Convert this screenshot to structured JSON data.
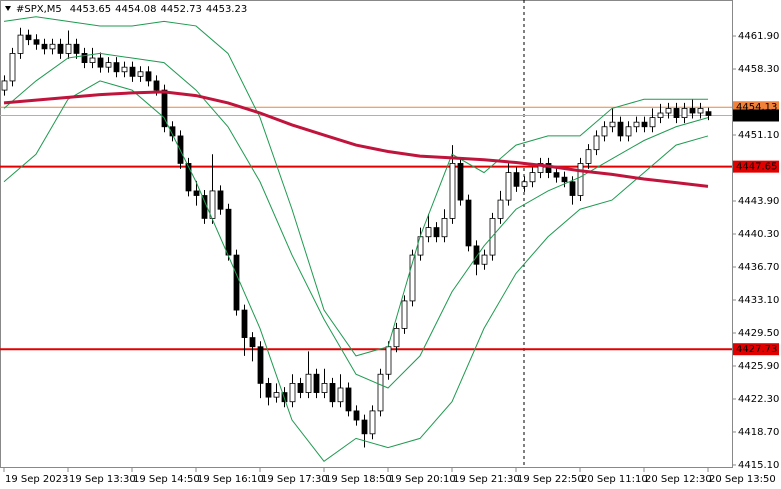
{
  "chart_data": {
    "type": "candlestick",
    "title": "#SPX,M5",
    "categories": [
      "19 Sep 2023",
      null,
      null,
      null,
      null,
      null,
      null,
      null,
      "19 Sep 13:30",
      null,
      null,
      null,
      null,
      null,
      null,
      null,
      "19 Sep 14:50",
      null,
      null,
      null,
      null,
      null,
      null,
      null,
      "19 Sep 16:10",
      null,
      null,
      null,
      null,
      null,
      null,
      null,
      "19 Sep 17:30",
      null,
      null,
      null,
      null,
      null,
      null,
      null,
      "19 Sep 18:50",
      null,
      null,
      null,
      null,
      null,
      null,
      null,
      "19 Sep 20:10",
      null,
      null,
      null,
      null,
      null,
      null,
      null,
      "19 Sep 21:30",
      null,
      null,
      null,
      null,
      null,
      null,
      null,
      "19 Sep 22:50",
      null,
      null,
      null,
      null,
      null,
      null,
      null,
      "20 Sep 11:10",
      null,
      null,
      null,
      null,
      null,
      null,
      null,
      "20 Sep 12:30",
      null,
      null,
      null,
      null,
      null,
      null,
      null,
      "20 Sep 13:50"
    ],
    "open": [
      4456,
      4457,
      4460,
      4462,
      4461.5,
      4461,
      4460.5,
      4461,
      4460,
      4461,
      4460,
      4459,
      4459.5,
      4458.5,
      4459,
      4458,
      4458.5,
      4457.5,
      4458,
      4457,
      4456,
      4452,
      4451,
      4448,
      4445,
      4444.5,
      4442,
      4445,
      4443,
      4438,
      4432,
      4429,
      4428,
      4424,
      4422.5,
      4423,
      4422,
      4424,
      4423,
      4425,
      4423,
      4424,
      4422,
      4423.5,
      4421,
      4420,
      4418.5,
      4421,
      4425,
      4428,
      4430,
      4433,
      4438,
      4440,
      4441,
      4440,
      4442,
      4448,
      4444,
      4439,
      4437,
      4438,
      4442,
      4444,
      4447,
      4445.5,
      4446,
      4447,
      4448,
      4447,
      4446.5,
      4446,
      4444.5,
      4448,
      4449.5,
      4451,
      4452,
      4452.5,
      4451,
      4452,
      4452.5,
      4452,
      4453,
      4453.5,
      4454,
      4453,
      4454,
      4453.5,
      4453.65
    ],
    "high": [
      4457.6,
      4460.6,
      4462.8,
      4462.6,
      4462.1,
      4461.6,
      4461.6,
      4461.6,
      4462.5,
      4461.6,
      4460.6,
      4460.6,
      4460.1,
      4459.6,
      4459.6,
      4459.1,
      4459.1,
      4458.6,
      4458.6,
      4457.6,
      4456.6,
      4452.6,
      4451.6,
      4448.6,
      4446.1,
      4445.1,
      4449,
      4445.6,
      4443.6,
      4438.6,
      4432.6,
      4429.6,
      4428.6,
      4424.6,
      4424,
      4423.6,
      4425,
      4424.6,
      4427.5,
      4425.6,
      4425.6,
      4424.6,
      4425,
      4424.1,
      4421.6,
      4420.6,
      4421.6,
      4425.6,
      4428.6,
      4430.6,
      4433.6,
      4438.6,
      4441,
      4442.5,
      4441.6,
      4443,
      4450,
      4448.6,
      4444.6,
      4439.6,
      4438.6,
      4442.6,
      4445,
      4448,
      4447.6,
      4446.6,
      4447.6,
      4448.6,
      4448.6,
      4447.6,
      4447.1,
      4446.6,
      4448.6,
      4450.1,
      4451.6,
      4452.6,
      4454,
      4453.1,
      4452.6,
      4453.1,
      4453.1,
      4454,
      4454.5,
      4454.6,
      4454.6,
      4454.6,
      4455,
      4454.6,
      4454.08
    ],
    "low": [
      4455.4,
      4456.4,
      4459.4,
      4460.9,
      4460.4,
      4459.9,
      4459.9,
      4459.4,
      4459.4,
      4459.4,
      4458.4,
      4458.4,
      4457.9,
      4457.9,
      4457.4,
      4457.4,
      4456.9,
      4456.9,
      4456.4,
      4455.4,
      4451.4,
      4450.4,
      4447.4,
      4444.4,
      4443.4,
      4441.4,
      4441.4,
      4442.4,
      4437.4,
      4431.4,
      4427,
      4426.4,
      4422.4,
      4421.6,
      4421.9,
      4421.4,
      4421.4,
      4422.4,
      4422.4,
      4422.4,
      4422.4,
      4421.4,
      4421.4,
      4420.4,
      4419.4,
      4417,
      4417.9,
      4420.4,
      4424.4,
      4427.4,
      4429.4,
      4432.4,
      4437.4,
      4439.4,
      4439.4,
      4439.4,
      4441.4,
      4443.4,
      4438.4,
      4435.8,
      4436.4,
      4437.4,
      4441.4,
      4443.4,
      4444.9,
      4444.9,
      4445.4,
      4446.4,
      4446.4,
      4445.9,
      4445.4,
      4443.5,
      4443.9,
      4447.4,
      4448.9,
      4450.4,
      4451.4,
      4450.4,
      4450.4,
      4451.4,
      4451.4,
      4451.4,
      4452.4,
      4452.9,
      4452.4,
      4452.4,
      4452.9,
      4452.9,
      4452.73
    ],
    "close": [
      4457,
      4460,
      4462,
      4461.5,
      4461,
      4460.5,
      4461,
      4460,
      4461,
      4460,
      4459,
      4459.5,
      4458.5,
      4459,
      4458,
      4458.5,
      4457.5,
      4458,
      4457,
      4456,
      4452,
      4451,
      4448,
      4445,
      4444.5,
      4442,
      4445,
      4443,
      4438,
      4432,
      4429,
      4428,
      4424,
      4422.5,
      4423,
      4422,
      4424,
      4423,
      4425,
      4423,
      4424,
      4422,
      4423.5,
      4421,
      4420,
      4418.5,
      4421,
      4425,
      4428,
      4430,
      4433,
      4438,
      4440,
      4441,
      4440,
      4442,
      4448,
      4444,
      4439,
      4437,
      4438,
      4442,
      4444,
      4447,
      4445.5,
      4446,
      4447,
      4448,
      4447,
      4446.5,
      4446,
      4444.5,
      4448,
      4449.5,
      4451,
      4452,
      4452.5,
      4451,
      4452,
      4452.5,
      4452,
      4453,
      4453.5,
      4454,
      4453,
      4454,
      4453.5,
      4454,
      4453.23
    ],
    "up_color": "#ffffff",
    "down_color": "#000000",
    "candle_outline": "#000000",
    "indicators": [
      {
        "color": "#1e9a50",
        "width": 1,
        "x": [
          0,
          4,
          8,
          12,
          16,
          20,
          24,
          28,
          32,
          36,
          40,
          44,
          48,
          52,
          56,
          60,
          64,
          68,
          72,
          76,
          80,
          84,
          88
        ],
        "values": [
          4463.5,
          4464,
          4463.5,
          4463,
          4463,
          4463.5,
          4463,
          4460,
          4453,
          4443,
          4432,
          4427,
          4428,
          4440,
          4449,
          4447,
          4450,
          4451,
          4451,
          4454,
          4455,
          4455,
          4455
        ]
      },
      {
        "color": "#1e9a50",
        "width": 1,
        "x": [
          0,
          4,
          8,
          12,
          16,
          20,
          24,
          28,
          32,
          36,
          40,
          44,
          48,
          52,
          56,
          60,
          64,
          68,
          72,
          76,
          80,
          84,
          88
        ],
        "values": [
          4454,
          4457,
          4459.5,
          4460,
          4459.5,
          4459,
          4456,
          4452,
          4446,
          4438,
          4431,
          4425,
          4423.5,
          4427,
          4434,
          4439,
          4443,
          4445,
          4446.5,
          4448.5,
          4450.5,
          4452,
          4453
        ]
      },
      {
        "color": "#1e9a50",
        "width": 1,
        "x": [
          0,
          4,
          8,
          12,
          16,
          20,
          24,
          28,
          32,
          36,
          40,
          44,
          48,
          52,
          56,
          60,
          64,
          68,
          72,
          76,
          80,
          84,
          88
        ],
        "values": [
          4446,
          4449,
          4455,
          4457,
          4456,
          4453,
          4446,
          4438,
          4430,
          4420,
          4415.5,
          4418,
          4417,
          4418,
          4422,
          4430,
          4436,
          4440,
          4443,
          4444,
          4447,
          4450,
          4451
        ]
      },
      {
        "color": "#c0143c",
        "width": 3,
        "x": [
          0,
          4,
          8,
          12,
          16,
          20,
          24,
          28,
          32,
          36,
          40,
          44,
          48,
          52,
          56,
          60,
          64,
          68,
          72,
          76,
          80,
          84,
          88
        ],
        "values": [
          4454.6,
          4454.9,
          4455.2,
          4455.5,
          4455.7,
          4455.8,
          4455.4,
          4454.6,
          4453.5,
          4452.2,
          4451.1,
          4450,
          4449.3,
          4448.8,
          4448.6,
          4448.4,
          4448.1,
          4447.7,
          4447.2,
          4446.8,
          4446.3,
          4445.9,
          4445.5
        ]
      }
    ],
    "levels": [
      {
        "value": 4454.13,
        "color": "#f0823c",
        "width": 1
      },
      {
        "value": 4447.65,
        "color": "#e00000",
        "width": 2
      },
      {
        "value": 4427.73,
        "color": "#e00000",
        "width": 2
      }
    ],
    "price_line_color": "#b0b0b0",
    "price_label_bg": "#000000",
    "crosshair_x": 65,
    "ylim": [
      4414.77,
      4465.83
    ],
    "yticks": [
      {
        "value": 4461.9,
        "label": "4461.90"
      },
      {
        "value": 4458.3,
        "label": "4458.30"
      },
      {
        "value": 4451.1,
        "label": "4451.10"
      },
      {
        "value": 4443.9,
        "label": "4443.90"
      },
      {
        "value": 4440.3,
        "label": "4440.30"
      },
      {
        "value": 4436.7,
        "label": "4436.70"
      },
      {
        "value": 4433.1,
        "label": "4433.10"
      },
      {
        "value": 4429.5,
        "label": "4429.50"
      },
      {
        "value": 4425.9,
        "label": "4425.90"
      },
      {
        "value": 4422.3,
        "label": "4422.30"
      },
      {
        "value": 4418.7,
        "label": "4418.70"
      },
      {
        "value": 4415.1,
        "label": "4415.10"
      }
    ]
  }
}
